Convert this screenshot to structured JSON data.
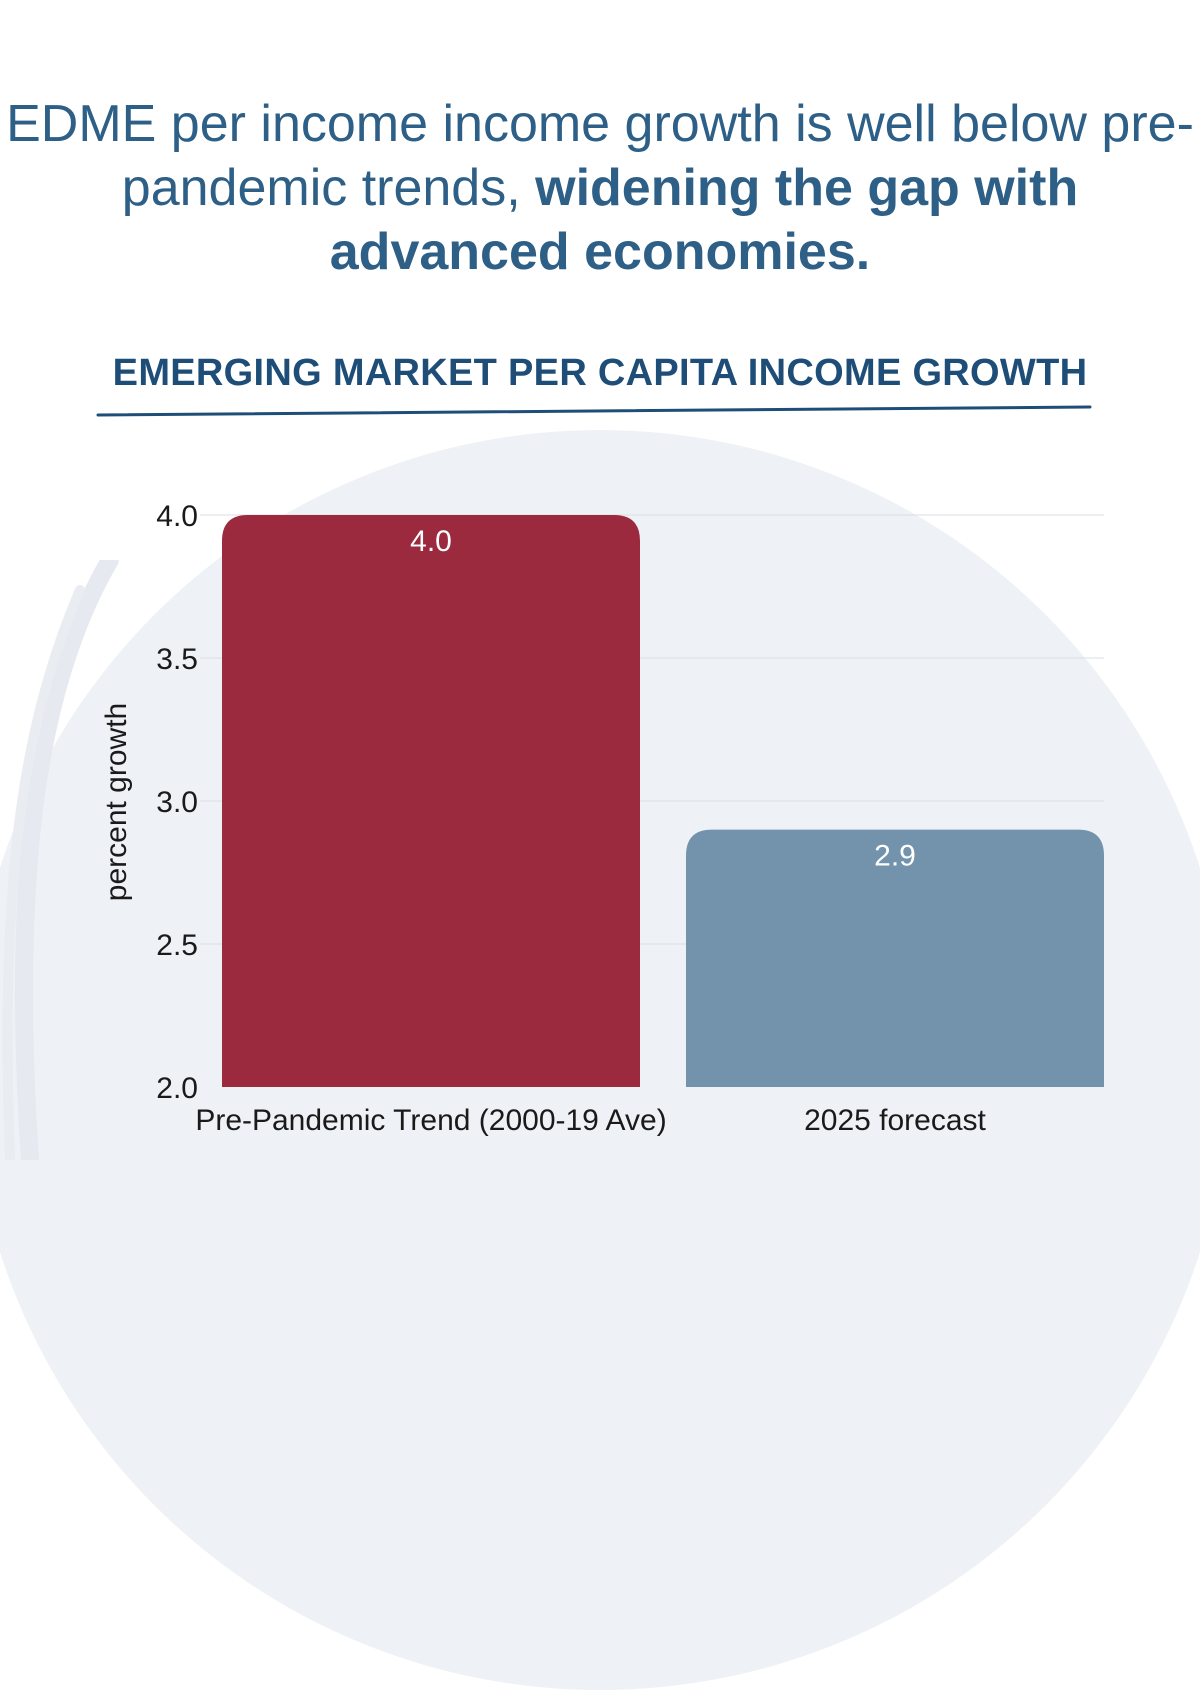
{
  "headline": {
    "text_regular": "EDME per income income growth is well below pre-pandemic trends, ",
    "text_bold": "widening the gap with advanced economies."
  },
  "colors": {
    "headline": "#2e5f86",
    "title": "#1e4e78",
    "bar_pre_pandemic": "#9b2a3f",
    "bar_forecast": "#7393ac",
    "background_disc": "#eef1f5"
  },
  "chart_data": {
    "type": "bar",
    "title": "EMERGING MARKET PER CAPITA INCOME GROWTH",
    "categories": [
      "Pre-Pandemic Trend (2000-19 Ave)",
      "2025 forecast"
    ],
    "values": [
      4.0,
      2.9
    ],
    "data_labels": [
      "4.0",
      "2.9"
    ],
    "xlabel": "",
    "ylabel": "percent growth",
    "ylim": [
      2.0,
      4.0
    ],
    "yticks": [
      2.0,
      2.5,
      3.0,
      3.5,
      4.0
    ],
    "ytick_labels": [
      "2.0",
      "2.5",
      "3.0",
      "3.5",
      "4.0"
    ],
    "grid": true,
    "legend": "none"
  }
}
